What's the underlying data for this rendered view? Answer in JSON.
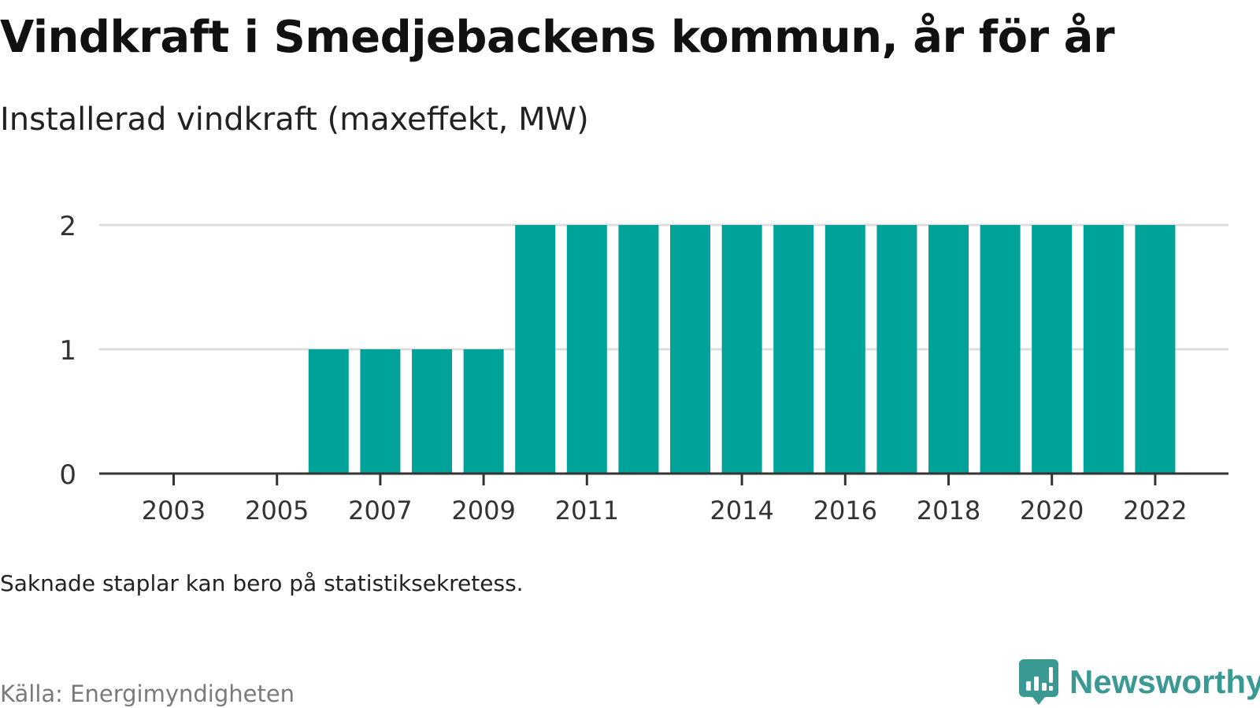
{
  "title": "Vindkraft i Smedjebackens kommun, år för år",
  "subtitle": "Installerad vindkraft (maxeffekt, MW)",
  "note": "Saknade staplar kan bero på statistiksekretess.",
  "source": "Källa: Energimyndigheten",
  "brand": {
    "name": "Newsworthy",
    "logo_icon": "newsworthy-logo-icon",
    "color": "#3a9a93"
  },
  "colors": {
    "bar": "#00a39a",
    "gridline": "#dddddd",
    "axis": "#333333",
    "tick_text": "#333333"
  },
  "chart_data": {
    "type": "bar",
    "categories": [
      "2003",
      "2004",
      "2005",
      "2006",
      "2007",
      "2008",
      "2009",
      "2010",
      "2011",
      "2012",
      "2013",
      "2014",
      "2015",
      "2016",
      "2017",
      "2018",
      "2019",
      "2020",
      "2021",
      "2022"
    ],
    "values": [
      0,
      0,
      0,
      1,
      1,
      1,
      1,
      2,
      2,
      2,
      2,
      2,
      2,
      2,
      2,
      2,
      2,
      2,
      2,
      2
    ],
    "x_tick_labels": [
      "2003",
      "2005",
      "2007",
      "2009",
      "2011",
      "2014",
      "2016",
      "2018",
      "2020",
      "2022"
    ],
    "y_ticks": [
      0,
      1,
      2
    ],
    "ylim": [
      0,
      2
    ],
    "grid": true,
    "legend": "none"
  }
}
